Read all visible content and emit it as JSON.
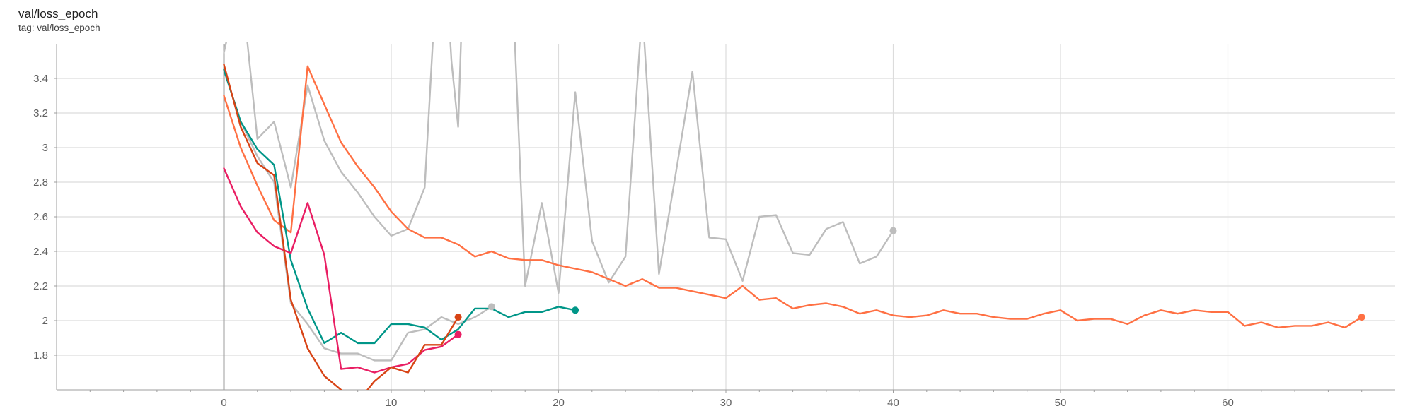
{
  "card": {
    "title": "val/loss_epoch",
    "tag": "tag: val/loss_epoch"
  },
  "colors": {
    "grid": "#dcdcdc",
    "axis": "#9e9e9e",
    "zero_line": "#9e9e9e"
  },
  "chart_data": {
    "type": "line",
    "title": "val/loss_epoch",
    "xlabel": "",
    "ylabel": "",
    "xlim": [
      -10,
      70
    ],
    "ylim": [
      1.6,
      3.6
    ],
    "grid": true,
    "x_ticks": [
      0,
      10,
      20,
      30,
      40,
      50,
      60
    ],
    "y_ticks": [
      1.8,
      2,
      2.2,
      2.4,
      2.6,
      2.8,
      3,
      3.2,
      3.4
    ],
    "x_tick_labels": [
      "0",
      "10",
      "20",
      "30",
      "40",
      "50",
      "60"
    ],
    "y_tick_labels": [
      "1.8",
      "2",
      "2.2",
      "2.4",
      "2.6",
      "2.8",
      "3",
      "3.2",
      "3.4"
    ],
    "series": [
      {
        "color": "#bdbdbd",
        "end_marker": true,
        "points": [
          [
            0,
            3.55
          ],
          [
            1,
            3.98
          ],
          [
            2,
            3.05
          ],
          [
            3,
            3.15
          ],
          [
            4,
            2.77
          ],
          [
            5,
            3.36
          ],
          [
            6,
            3.04
          ],
          [
            7,
            2.86
          ],
          [
            8,
            2.74
          ],
          [
            9,
            2.6
          ],
          [
            10,
            2.49
          ],
          [
            11,
            2.53
          ],
          [
            12,
            2.77
          ],
          [
            13,
            4.5
          ],
          [
            13.6,
            3.5
          ],
          [
            14,
            3.12
          ],
          [
            14.2,
            3.7
          ],
          [
            15,
            4.4
          ],
          [
            17,
            4.5
          ],
          [
            18,
            2.2
          ],
          [
            19,
            2.68
          ],
          [
            20,
            2.16
          ],
          [
            21,
            3.32
          ],
          [
            22,
            2.46
          ],
          [
            23,
            2.22
          ],
          [
            24,
            2.37
          ],
          [
            25,
            3.8
          ],
          [
            26,
            2.27
          ],
          [
            27,
            2.85
          ],
          [
            28,
            3.44
          ],
          [
            29,
            2.48
          ],
          [
            30,
            2.47
          ],
          [
            31,
            2.23
          ],
          [
            32,
            2.6
          ],
          [
            33,
            2.61
          ],
          [
            34,
            2.39
          ],
          [
            35,
            2.38
          ],
          [
            36,
            2.53
          ],
          [
            37,
            2.57
          ],
          [
            38,
            2.33
          ],
          [
            39,
            2.37
          ],
          [
            40,
            2.52
          ]
        ]
      },
      {
        "color": "#bdbdbd",
        "end_marker": true,
        "points": [
          [
            0,
            3.45
          ],
          [
            1,
            3.15
          ],
          [
            2,
            2.95
          ],
          [
            3,
            2.8
          ],
          [
            4,
            2.1
          ],
          [
            5,
            1.98
          ],
          [
            6,
            1.84
          ],
          [
            7,
            1.81
          ],
          [
            8,
            1.81
          ],
          [
            9,
            1.77
          ],
          [
            10,
            1.77
          ],
          [
            11,
            1.93
          ],
          [
            12,
            1.95
          ],
          [
            13,
            2.02
          ],
          [
            14,
            1.98
          ],
          [
            15,
            2.02
          ],
          [
            16,
            2.08
          ]
        ]
      },
      {
        "color": "#ff7043",
        "end_marker": true,
        "points": [
          [
            0,
            3.3
          ],
          [
            1,
            3.0
          ],
          [
            2,
            2.78
          ],
          [
            3,
            2.58
          ],
          [
            4,
            2.51
          ],
          [
            5,
            3.47
          ],
          [
            6,
            3.25
          ],
          [
            7,
            3.03
          ],
          [
            8,
            2.89
          ],
          [
            9,
            2.77
          ],
          [
            10,
            2.63
          ],
          [
            11,
            2.53
          ],
          [
            12,
            2.48
          ],
          [
            13,
            2.48
          ],
          [
            14,
            2.44
          ],
          [
            15,
            2.37
          ],
          [
            16,
            2.4
          ],
          [
            17,
            2.36
          ],
          [
            18,
            2.35
          ],
          [
            19,
            2.35
          ],
          [
            20,
            2.32
          ],
          [
            21,
            2.3
          ],
          [
            22,
            2.28
          ],
          [
            23,
            2.24
          ],
          [
            24,
            2.2
          ],
          [
            25,
            2.24
          ],
          [
            26,
            2.19
          ],
          [
            27,
            2.19
          ],
          [
            28,
            2.17
          ],
          [
            29,
            2.15
          ],
          [
            30,
            2.13
          ],
          [
            31,
            2.2
          ],
          [
            32,
            2.12
          ],
          [
            33,
            2.13
          ],
          [
            34,
            2.07
          ],
          [
            35,
            2.09
          ],
          [
            36,
            2.1
          ],
          [
            37,
            2.08
          ],
          [
            38,
            2.04
          ],
          [
            39,
            2.06
          ],
          [
            40,
            2.03
          ],
          [
            41,
            2.02
          ],
          [
            42,
            2.03
          ],
          [
            43,
            2.06
          ],
          [
            44,
            2.04
          ],
          [
            45,
            2.04
          ],
          [
            46,
            2.02
          ],
          [
            47,
            2.01
          ],
          [
            48,
            2.01
          ],
          [
            49,
            2.04
          ],
          [
            50,
            2.06
          ],
          [
            51,
            2.0
          ],
          [
            52,
            2.01
          ],
          [
            53,
            2.01
          ],
          [
            54,
            1.98
          ],
          [
            55,
            2.03
          ],
          [
            56,
            2.06
          ],
          [
            57,
            2.04
          ],
          [
            58,
            2.06
          ],
          [
            59,
            2.05
          ],
          [
            60,
            2.05
          ],
          [
            61,
            1.97
          ],
          [
            62,
            1.99
          ],
          [
            63,
            1.96
          ],
          [
            64,
            1.97
          ],
          [
            65,
            1.97
          ],
          [
            66,
            1.99
          ],
          [
            67,
            1.96
          ],
          [
            68,
            2.02
          ]
        ]
      },
      {
        "color": "#009688",
        "end_marker": true,
        "points": [
          [
            0,
            3.45
          ],
          [
            1,
            3.15
          ],
          [
            2,
            2.99
          ],
          [
            3,
            2.9
          ],
          [
            4,
            2.35
          ],
          [
            5,
            2.07
          ],
          [
            6,
            1.87
          ],
          [
            7,
            1.93
          ],
          [
            8,
            1.87
          ],
          [
            9,
            1.87
          ],
          [
            10,
            1.98
          ],
          [
            11,
            1.98
          ],
          [
            12,
            1.96
          ],
          [
            13,
            1.89
          ],
          [
            14,
            1.95
          ],
          [
            15,
            2.07
          ],
          [
            16,
            2.07
          ],
          [
            17,
            2.02
          ],
          [
            18,
            2.05
          ],
          [
            19,
            2.05
          ],
          [
            20,
            2.08
          ],
          [
            21,
            2.06
          ]
        ]
      },
      {
        "color": "#e91e63",
        "end_marker": true,
        "points": [
          [
            0,
            2.88
          ],
          [
            1,
            2.66
          ],
          [
            2,
            2.51
          ],
          [
            3,
            2.43
          ],
          [
            4,
            2.39
          ],
          [
            5,
            2.68
          ],
          [
            6,
            2.38
          ],
          [
            7,
            1.72
          ],
          [
            8,
            1.73
          ],
          [
            9,
            1.7
          ],
          [
            10,
            1.73
          ],
          [
            11,
            1.75
          ],
          [
            12,
            1.83
          ],
          [
            13,
            1.85
          ],
          [
            14,
            1.92
          ]
        ]
      },
      {
        "color": "#d84315",
        "end_marker": true,
        "points": [
          [
            0,
            3.48
          ],
          [
            1,
            3.12
          ],
          [
            2,
            2.91
          ],
          [
            3,
            2.84
          ],
          [
            4,
            2.12
          ],
          [
            5,
            1.84
          ],
          [
            6,
            1.68
          ],
          [
            7,
            1.6
          ],
          [
            8,
            1.53
          ],
          [
            9,
            1.65
          ],
          [
            10,
            1.73
          ],
          [
            11,
            1.7
          ],
          [
            12,
            1.86
          ],
          [
            13,
            1.86
          ],
          [
            14,
            2.02
          ]
        ]
      }
    ]
  }
}
